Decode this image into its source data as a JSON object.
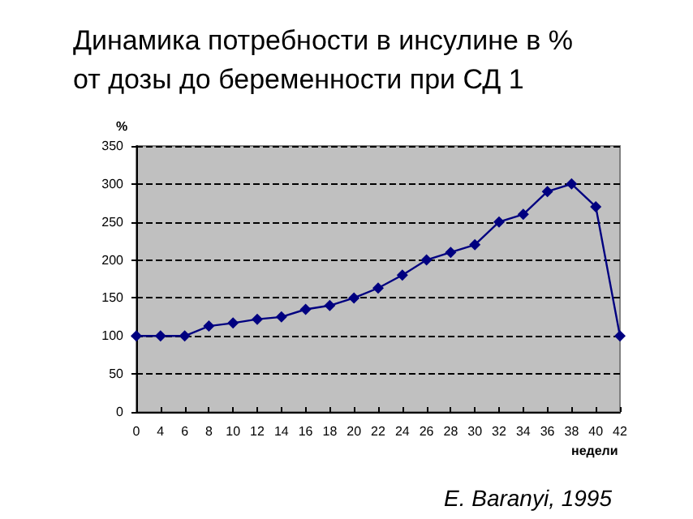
{
  "chart_data": {
    "type": "line",
    "title": "Динамика потребности в инсулине в %\nот дозы до беременности при СД 1",
    "xlabel": "недели",
    "ylabel": "%",
    "categories": [
      "0",
      "4",
      "6",
      "8",
      "10",
      "12",
      "14",
      "16",
      "18",
      "20",
      "22",
      "24",
      "26",
      "28",
      "30",
      "32",
      "34",
      "36",
      "38",
      "40",
      "42"
    ],
    "series": [
      {
        "color": "#000080",
        "values": [
          100,
          100,
          100,
          113,
          117,
          122,
          125,
          135,
          140,
          150,
          163,
          180,
          200,
          210,
          220,
          250,
          260,
          290,
          300,
          270,
          100
        ]
      }
    ],
    "ylim": [
      0,
      350
    ],
    "yticks": [
      0,
      50,
      100,
      150,
      200,
      250,
      300,
      350
    ],
    "grid": "y",
    "marker": "diamond",
    "line_style": "solid",
    "annotations": [
      "E. Baranyi, 1995"
    ]
  }
}
